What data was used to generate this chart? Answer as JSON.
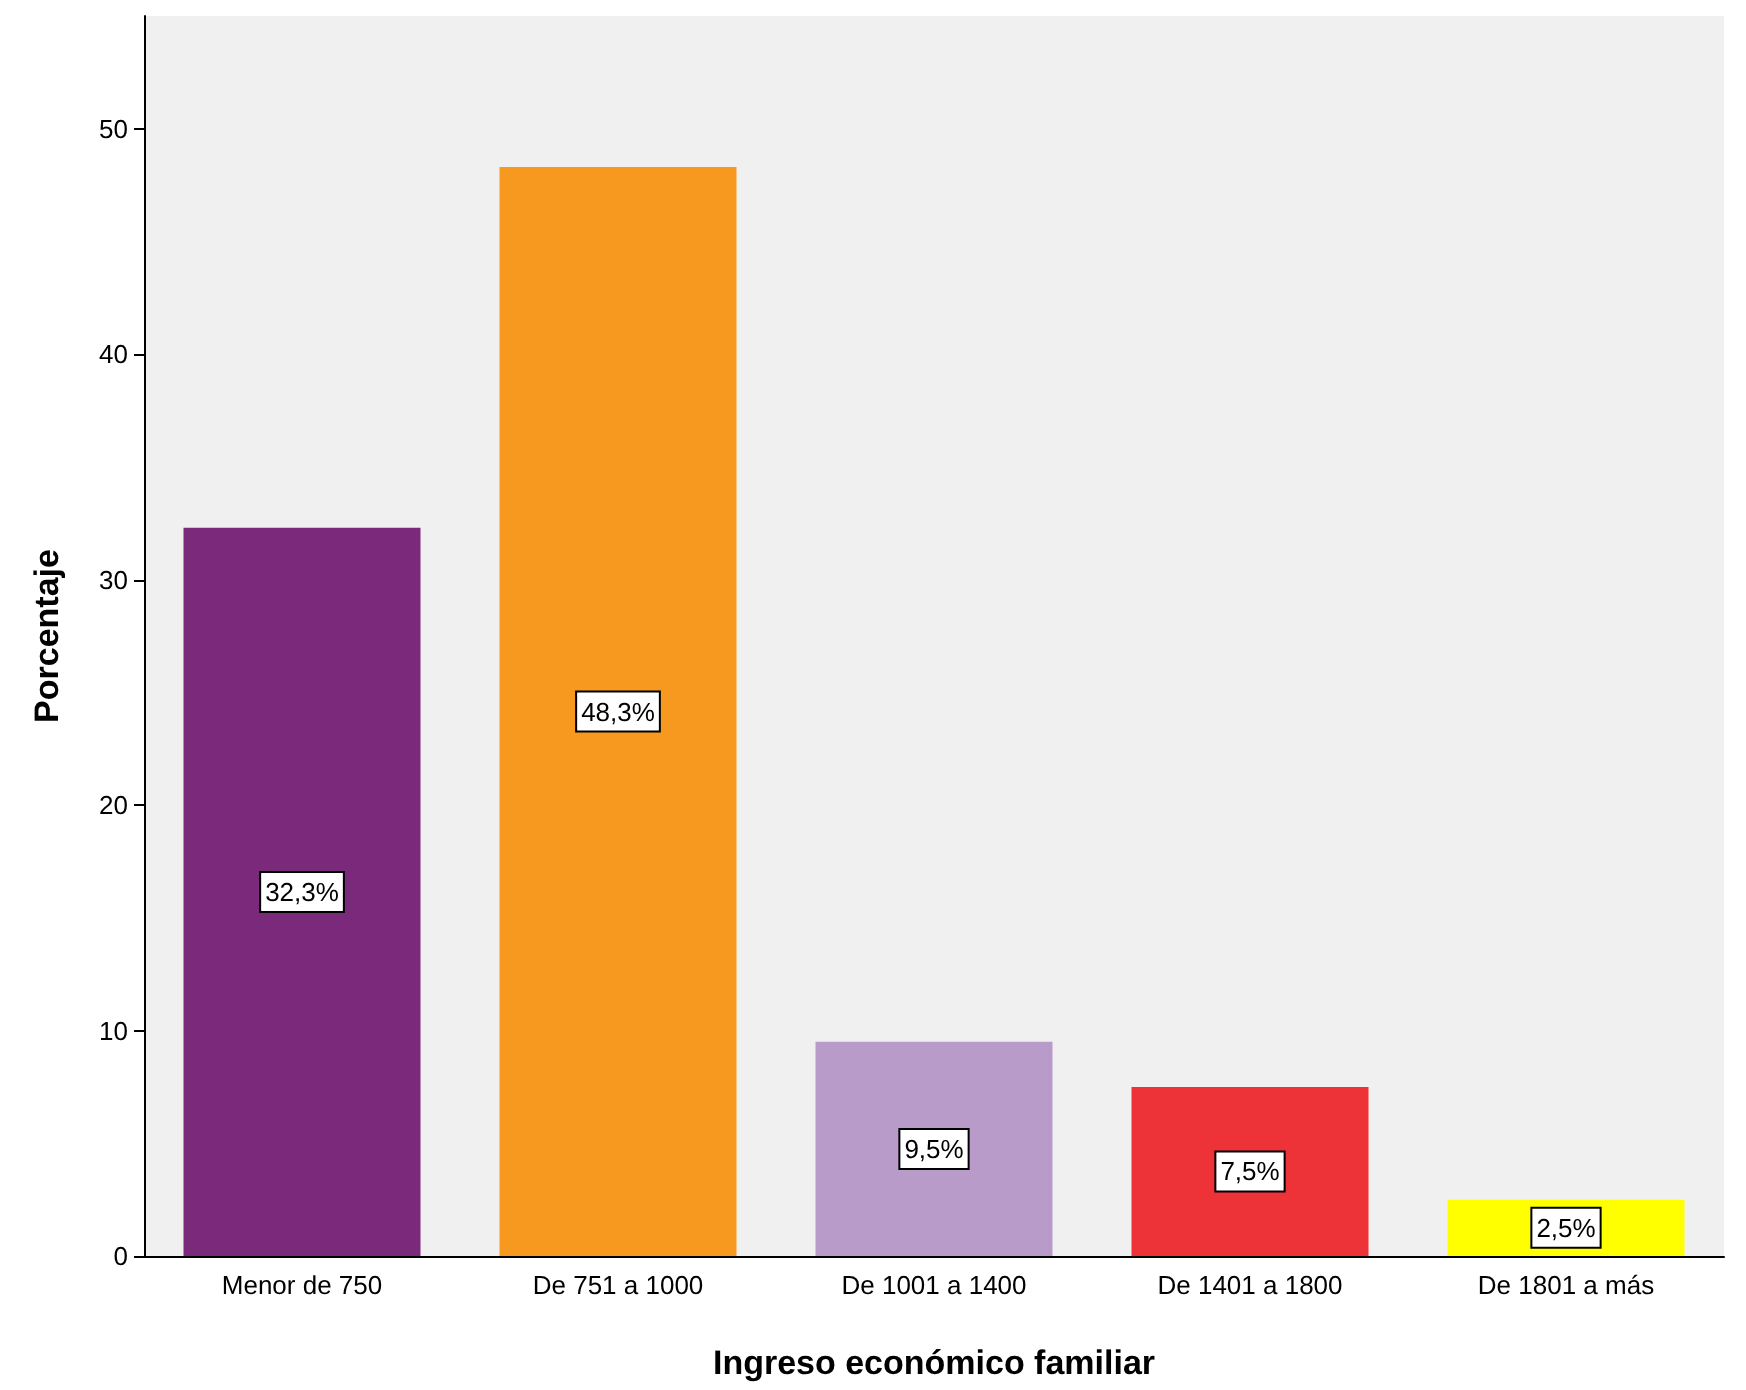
{
  "chart_data": {
    "type": "bar",
    "xlabel": "Ingreso económico familiar",
    "ylabel": "Porcentaje",
    "categories": [
      "Menor de 750",
      "De 751 a 1000",
      "De 1001 a 1400",
      "De 1401 a 1800",
      "De 1801 a más"
    ],
    "values": [
      32.3,
      48.3,
      9.5,
      7.5,
      2.5
    ],
    "colors": [
      "#7b2a7b",
      "#f7991f",
      "#b89bc9",
      "#ee3338",
      "#ffff00"
    ],
    "value_labels": [
      "32,3%",
      "48,3%",
      "9,5%",
      "7,5%",
      "2,5%"
    ],
    "ylim": [
      0,
      55
    ],
    "yticks": [
      0,
      10,
      20,
      30,
      40,
      50
    ],
    "grid": false
  }
}
